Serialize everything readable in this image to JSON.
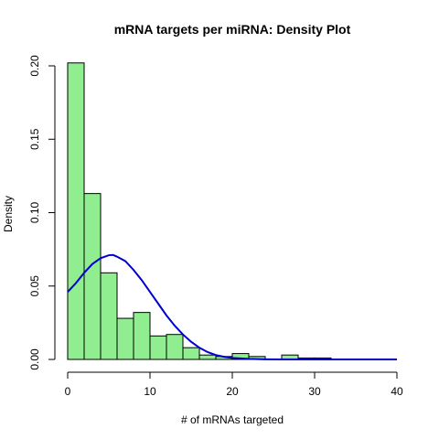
{
  "chart_data": {
    "type": "bar",
    "title": "mRNA targets per miRNA: Density Plot",
    "xlabel": "# of mRNAs targeted",
    "ylabel": "Density",
    "xlim": [
      0,
      40
    ],
    "ylim": [
      0,
      0.2
    ],
    "x_ticks": [
      "0",
      "10",
      "20",
      "30",
      "40"
    ],
    "y_ticks": [
      "0.00",
      "0.05",
      "0.10",
      "0.15",
      "0.20"
    ],
    "histogram": {
      "bin_width": 2,
      "bins": [
        {
          "start": 0,
          "end": 2,
          "density": 0.202
        },
        {
          "start": 2,
          "end": 4,
          "density": 0.113
        },
        {
          "start": 4,
          "end": 6,
          "density": 0.059
        },
        {
          "start": 6,
          "end": 8,
          "density": 0.028
        },
        {
          "start": 8,
          "end": 10,
          "density": 0.032
        },
        {
          "start": 10,
          "end": 12,
          "density": 0.016
        },
        {
          "start": 12,
          "end": 14,
          "density": 0.017
        },
        {
          "start": 14,
          "end": 16,
          "density": 0.008
        },
        {
          "start": 16,
          "end": 18,
          "density": 0.003
        },
        {
          "start": 18,
          "end": 20,
          "density": 0.002
        },
        {
          "start": 20,
          "end": 22,
          "density": 0.004
        },
        {
          "start": 22,
          "end": 24,
          "density": 0.002
        },
        {
          "start": 24,
          "end": 26,
          "density": 0.0
        },
        {
          "start": 26,
          "end": 28,
          "density": 0.003
        },
        {
          "start": 28,
          "end": 30,
          "density": 0.001
        },
        {
          "start": 30,
          "end": 32,
          "density": 0.001
        }
      ],
      "fill_color": "#90ee90",
      "border_color": "#000000"
    },
    "density_curve": {
      "color": "#0000cd",
      "x": [
        0,
        1,
        2,
        3,
        4,
        5,
        5.5,
        6,
        7,
        8,
        9,
        10,
        11,
        12,
        13,
        14,
        15,
        16,
        17,
        18,
        19,
        20,
        22,
        24,
        26,
        28,
        30,
        34,
        38,
        40
      ],
      "y": [
        0.046,
        0.052,
        0.059,
        0.065,
        0.069,
        0.071,
        0.0712,
        0.07,
        0.067,
        0.061,
        0.054,
        0.046,
        0.038,
        0.03,
        0.023,
        0.017,
        0.012,
        0.008,
        0.005,
        0.003,
        0.0018,
        0.001,
        0.0004,
        0.0001,
        0.0,
        0.0,
        0.0,
        0.0,
        0.0,
        0.0
      ]
    },
    "grid": false,
    "legend": "none"
  }
}
